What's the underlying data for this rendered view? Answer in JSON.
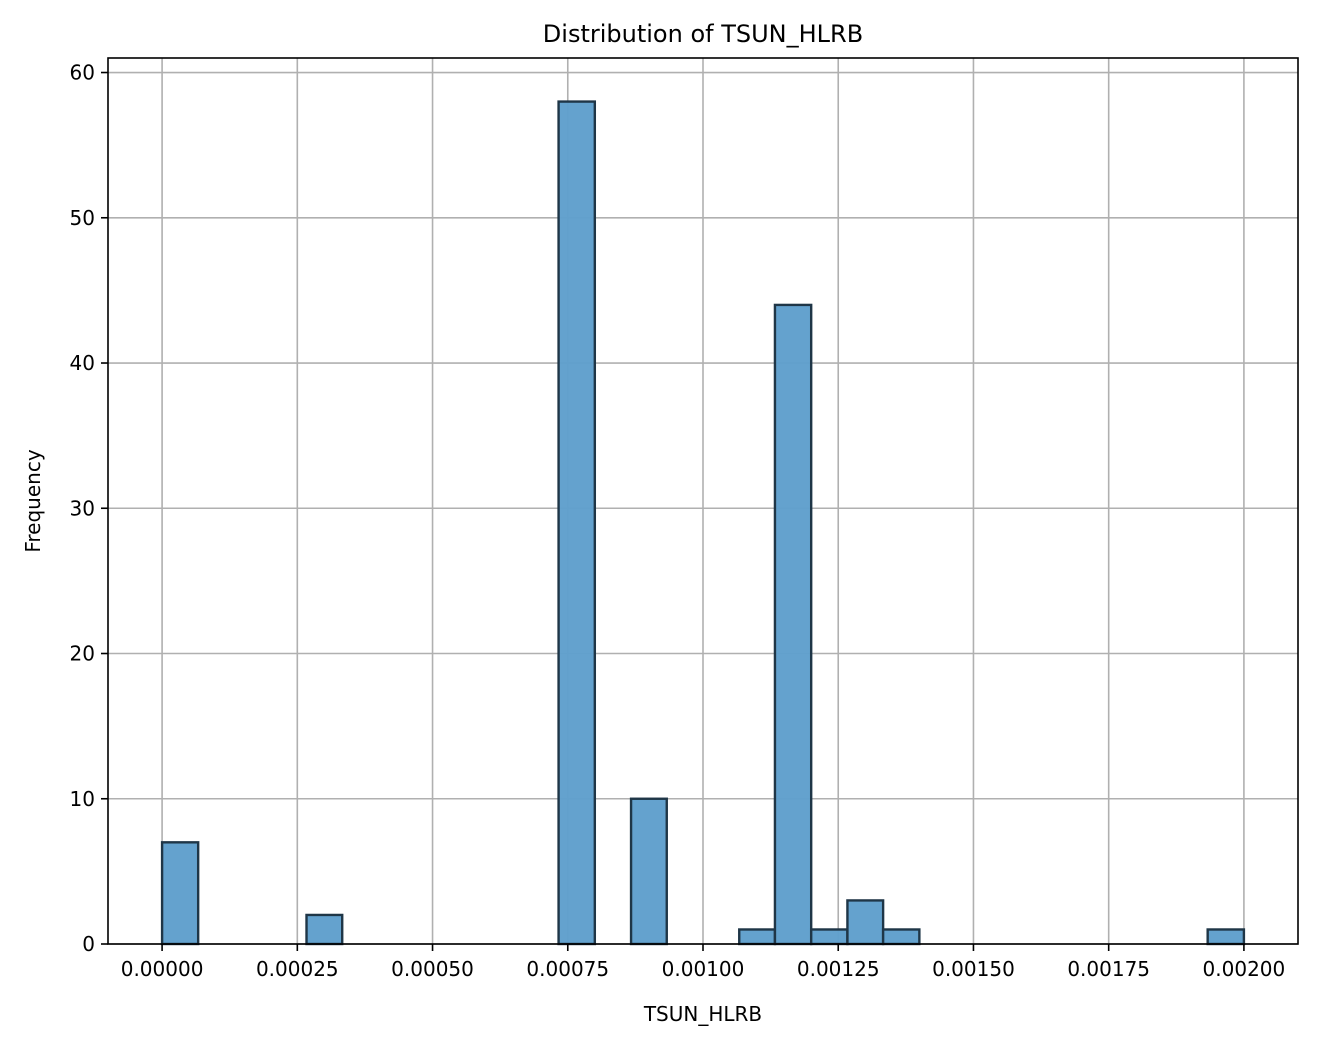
{
  "chart_data": {
    "type": "bar",
    "title": "Distribution of TSUN_HLRB",
    "xlabel": "TSUN_HLRB",
    "ylabel": "Frequency",
    "xlim": [
      -0.0001,
      0.0021
    ],
    "ylim": [
      0,
      61
    ],
    "x_ticks": [
      {
        "value": 0.0,
        "label": "0.00000"
      },
      {
        "value": 0.00025,
        "label": "0.00025"
      },
      {
        "value": 0.0005,
        "label": "0.00050"
      },
      {
        "value": 0.00075,
        "label": "0.00075"
      },
      {
        "value": 0.001,
        "label": "0.00100"
      },
      {
        "value": 0.00125,
        "label": "0.00125"
      },
      {
        "value": 0.0015,
        "label": "0.00150"
      },
      {
        "value": 0.00175,
        "label": "0.00175"
      },
      {
        "value": 0.002,
        "label": "0.00200"
      }
    ],
    "y_ticks": [
      {
        "value": 0,
        "label": "0"
      },
      {
        "value": 10,
        "label": "10"
      },
      {
        "value": 20,
        "label": "20"
      },
      {
        "value": 30,
        "label": "30"
      },
      {
        "value": 40,
        "label": "40"
      },
      {
        "value": 50,
        "label": "50"
      },
      {
        "value": 60,
        "label": "60"
      }
    ],
    "grid": true,
    "bar_color": "#5f9fcc",
    "edge_color": "#1f3647",
    "bins": [
      {
        "x0": 0.0,
        "x1": 6.67e-05,
        "count": 7
      },
      {
        "x0": 0.000267,
        "x1": 0.000333,
        "count": 2
      },
      {
        "x0": 0.000733,
        "x1": 0.0008,
        "count": 58
      },
      {
        "x0": 0.000867,
        "x1": 0.000933,
        "count": 10
      },
      {
        "x0": 0.001067,
        "x1": 0.001133,
        "count": 1
      },
      {
        "x0": 0.001133,
        "x1": 0.0012,
        "count": 44
      },
      {
        "x0": 0.0012,
        "x1": 0.001267,
        "count": 1
      },
      {
        "x0": 0.001267,
        "x1": 0.001333,
        "count": 3
      },
      {
        "x0": 0.001333,
        "x1": 0.0014,
        "count": 1
      },
      {
        "x0": 0.001933,
        "x1": 0.002,
        "count": 1
      }
    ]
  }
}
